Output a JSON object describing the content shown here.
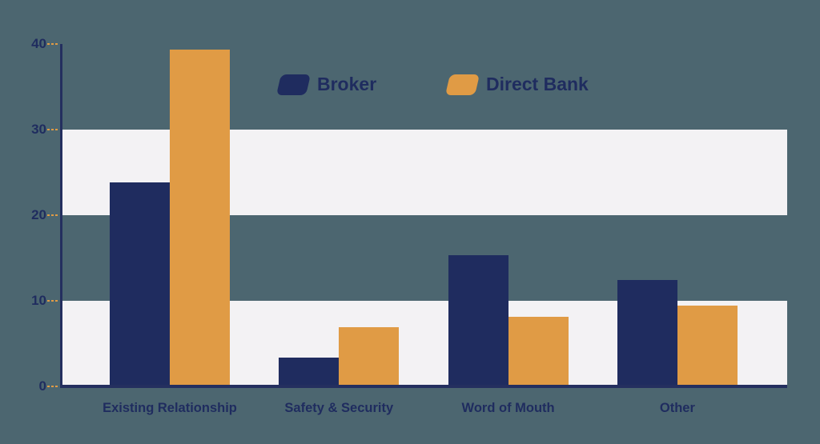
{
  "colors": {
    "background": "#4c6670",
    "band": "#f3f2f4",
    "axis": "#242f5f",
    "tick_dash": "#e09b45",
    "text": "#1f2c5f",
    "broker": "#1f2c5f",
    "direct_bank": "#e09b45"
  },
  "chart_data": {
    "type": "bar",
    "title": "",
    "xlabel": "",
    "ylabel": "",
    "categories": [
      "Existing Relationship",
      "Safety & Security",
      "Word of Mouth",
      "Other"
    ],
    "series": [
      {
        "name": "Broker",
        "color": "#1f2c5f",
        "values": [
          23.8,
          3.4,
          15.3,
          12.4
        ]
      },
      {
        "name": "Direct Bank",
        "color": "#e09b45",
        "values": [
          39.3,
          6.9,
          8.1,
          9.4
        ]
      }
    ],
    "ylim": [
      0,
      40
    ],
    "yticks": [
      0,
      10,
      20,
      30,
      40
    ],
    "shaded_bands": [
      [
        0,
        10
      ],
      [
        20,
        30
      ]
    ],
    "grid": false,
    "legend_position": "top-center"
  }
}
